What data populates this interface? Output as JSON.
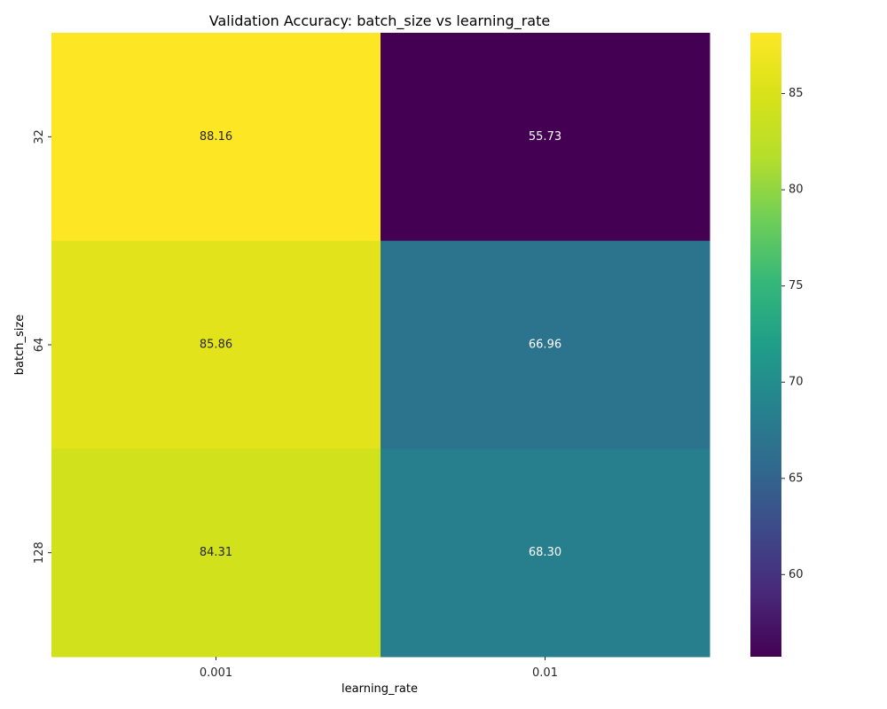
{
  "chart_data": {
    "type": "heatmap",
    "title": "Validation Accuracy: batch_size vs learning_rate",
    "xlabel": "learning_rate",
    "ylabel": "batch_size",
    "x_categories": [
      "0.001",
      "0.01"
    ],
    "y_categories": [
      "32",
      "64",
      "128"
    ],
    "values": [
      [
        88.16,
        55.73
      ],
      [
        85.86,
        66.96
      ],
      [
        84.31,
        68.3
      ]
    ],
    "value_labels": [
      [
        "88.16",
        "55.73"
      ],
      [
        "85.86",
        "66.96"
      ],
      [
        "84.31",
        "68.30"
      ]
    ],
    "colormap": "viridis",
    "colorbar": {
      "min": 55.73,
      "max": 88.16,
      "ticks": [
        60,
        65,
        70,
        75,
        80,
        85
      ],
      "tick_labels": [
        "60",
        "65",
        "70",
        "75",
        "80",
        "85"
      ]
    },
    "legend_position": "right",
    "grid": false
  }
}
